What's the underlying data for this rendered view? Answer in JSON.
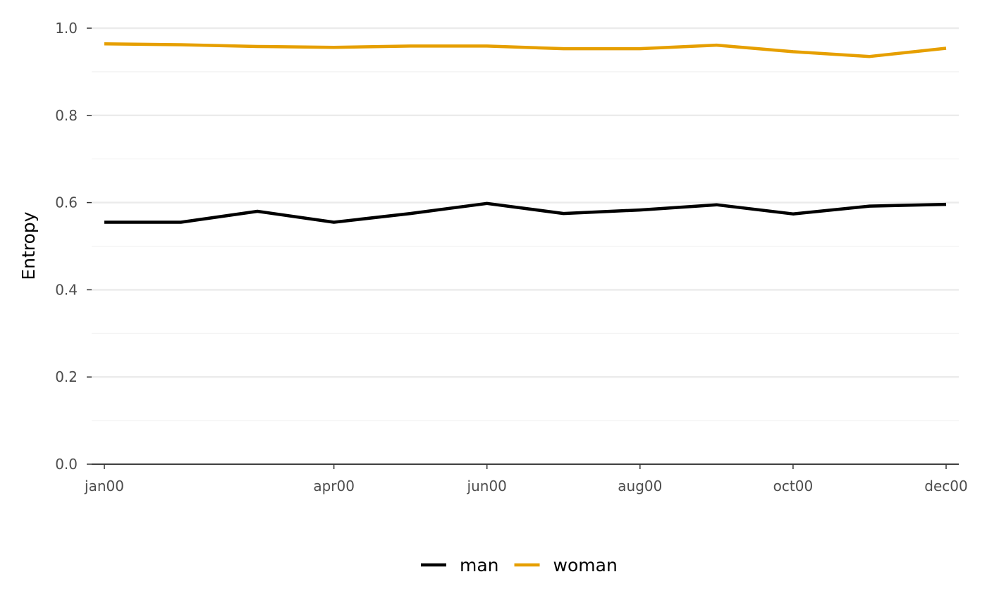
{
  "chart_data": {
    "type": "line",
    "title": "",
    "xlabel": "",
    "ylabel": "Entropy",
    "x": [
      "jan00",
      "feb00",
      "mar00",
      "apr00",
      "may00",
      "jun00",
      "jul00",
      "aug00",
      "sep00",
      "oct00",
      "nov00",
      "dec00"
    ],
    "x_tick_labels": [
      "jan00",
      "apr00",
      "jun00",
      "aug00",
      "oct00",
      "dec00"
    ],
    "y_ticks": [
      "0.0",
      "0.2",
      "0.4",
      "0.6",
      "0.8",
      "1.0"
    ],
    "ylim": [
      0,
      1.0
    ],
    "grid": true,
    "legend_position": "bottom",
    "series": [
      {
        "name": "man",
        "color": "#000000",
        "values": [
          0.555,
          0.555,
          0.58,
          0.555,
          0.575,
          0.598,
          0.575,
          0.583,
          0.595,
          0.574,
          0.592,
          0.596
        ]
      },
      {
        "name": "woman",
        "color": "#E69F00",
        "values": [
          0.964,
          0.962,
          0.958,
          0.956,
          0.959,
          0.959,
          0.953,
          0.953,
          0.961,
          0.946,
          0.935,
          0.954
        ]
      }
    ]
  }
}
